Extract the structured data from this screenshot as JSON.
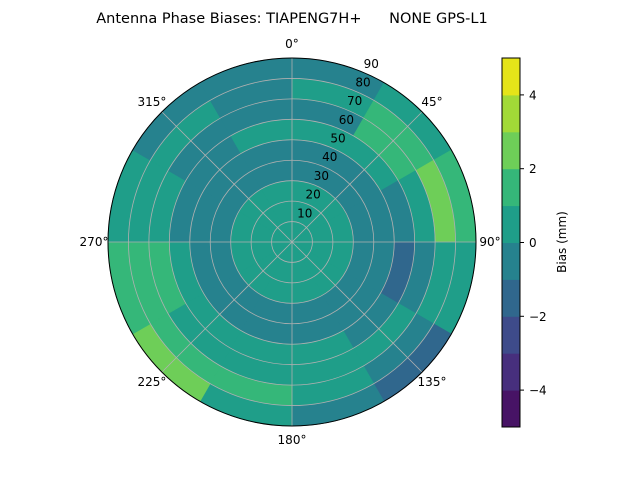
{
  "chart_data": {
    "type": "heatmap",
    "subtype": "polar-filled-contour",
    "title": "Antenna Phase Biases: TIAPENG7H+      NONE GPS-L1",
    "angular_ticks": [
      "0°",
      "45°",
      "90°",
      "135°",
      "180°",
      "225°",
      "270°",
      "315°"
    ],
    "angular_tick_values": [
      0,
      45,
      90,
      135,
      180,
      225,
      270,
      315
    ],
    "angular_direction": "clockwise",
    "angular_zero": "north",
    "radial_ticks": [
      "10",
      "20",
      "30",
      "40",
      "50",
      "60",
      "70",
      "80",
      "90"
    ],
    "radial_tick_values": [
      10,
      20,
      30,
      40,
      50,
      60,
      70,
      80,
      90
    ],
    "radial_range": [
      0,
      90
    ],
    "grid": true,
    "colorbar": {
      "label": "Bias (mm)",
      "range": [
        -5,
        5
      ],
      "levels": [
        -5,
        -4,
        -3,
        -2,
        -1,
        0,
        1,
        2,
        3,
        4,
        5
      ],
      "tick_values": [
        -4,
        -2,
        0,
        2,
        4
      ],
      "tick_labels": [
        "−4",
        "−2",
        "0",
        "2",
        "4"
      ],
      "colors": [
        "#471365",
        "#472f7d",
        "#3e4b8a",
        "#30678d",
        "#26828e",
        "#1f9e89",
        "#35b779",
        "#6ece58",
        "#a2da37",
        "#e5e419"
      ],
      "placement": "right"
    },
    "field": {
      "azimuth_bins": [
        0,
        30,
        60,
        90,
        120,
        150,
        180,
        210,
        240,
        270,
        300,
        330,
        360
      ],
      "radius_bins": [
        0,
        10,
        20,
        30,
        40,
        50,
        60,
        70,
        80,
        90
      ],
      "values_by_ring": [
        [
          0.5,
          0.5,
          0.5,
          0.5,
          0.5,
          0.5,
          0.5,
          0.5,
          0.5,
          0.5,
          0.5,
          0.5
        ],
        [
          0.5,
          0.5,
          0.5,
          0.5,
          0.5,
          0.5,
          0.5,
          0.5,
          0.5,
          0.5,
          0.5,
          0.5
        ],
        [
          0.5,
          0.5,
          0.5,
          0.5,
          0.5,
          0.5,
          0.5,
          0.5,
          0.5,
          0.5,
          0.5,
          0.5
        ],
        [
          -0.5,
          -0.5,
          -0.5,
          -0.5,
          -0.5,
          -0.5,
          -0.5,
          -0.5,
          -0.5,
          -0.5,
          -0.5,
          -0.5
        ],
        [
          -0.5,
          -0.5,
          -0.5,
          -0.5,
          -0.5,
          -0.5,
          -0.5,
          -0.5,
          -0.5,
          -0.5,
          -0.5,
          -0.5
        ],
        [
          0.5,
          0.5,
          -0.5,
          -1.5,
          -0.5,
          0.5,
          0.5,
          0.5,
          0.5,
          -0.5,
          -0.5,
          0.5
        ],
        [
          -0.5,
          1.5,
          0.5,
          -0.5,
          0.5,
          0.5,
          0.5,
          0.5,
          1.5,
          0.5,
          -0.5,
          -0.5
        ],
        [
          0.5,
          1.5,
          2.5,
          0.5,
          -0.5,
          0.5,
          1.5,
          1.5,
          1.5,
          0.5,
          0.5,
          -0.5
        ],
        [
          -0.5,
          0.5,
          1.5,
          0.5,
          -1.5,
          -0.5,
          0.5,
          2.5,
          1.5,
          0.5,
          -0.5,
          -0.5
        ]
      ]
    }
  }
}
